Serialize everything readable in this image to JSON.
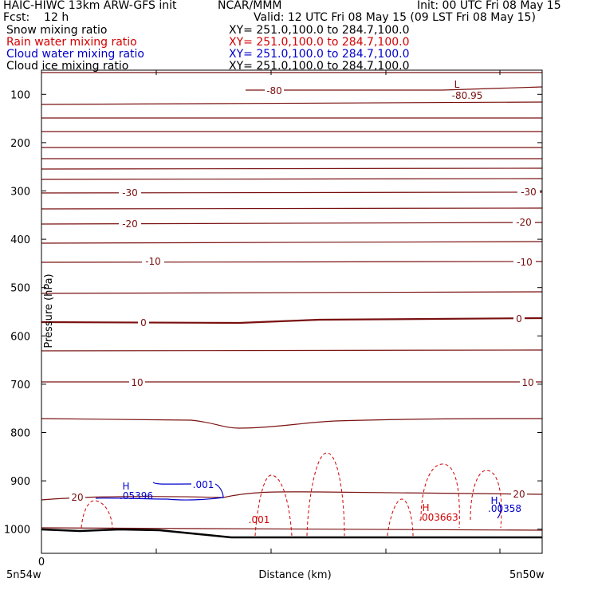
{
  "header": {
    "model": "HAIC-HIWC 13km ARW-GFS init",
    "org": "NCAR/MMM",
    "init": "Init: 00 UTC Fri 08 May 15",
    "fcst": "Fcst:    12 h",
    "valid": "Valid: 12 UTC Fri 08 May 15 (09 LST Fri 08 May 15)",
    "fields": [
      {
        "name": "Snow mixing ratio",
        "xy": "XY= 251.0,100.0 to 284.7,100.0",
        "color": "#000000"
      },
      {
        "name": "Rain water mixing ratio",
        "xy": "XY= 251.0,100.0 to 284.7,100.0",
        "color": "#d40000"
      },
      {
        "name": "Cloud water mixing ratio",
        "xy": "XY= 251.0,100.0 to 284.7,100.0",
        "color": "#0000cc"
      },
      {
        "name": "Cloud ice mixing ratio",
        "xy": "XY= 251.0,100.0 to 284.7,100.0",
        "color": "#000000"
      }
    ]
  },
  "chart_data": {
    "type": "cross-section contour",
    "xlabel": "Distance (km)",
    "ylabel": "Pressure (hPa)",
    "x_start_tick": "0",
    "x_left_label": "5n54w",
    "x_right_label": "5n50w",
    "yticks": [
      100,
      200,
      300,
      400,
      500,
      600,
      700,
      800,
      900,
      1000
    ],
    "ylim": [
      1050,
      50
    ],
    "temperature_contour_labels": [
      "-80",
      "-30",
      "-30",
      "-20",
      "-20",
      "-10",
      "-10",
      "0",
      "0",
      "10",
      "10",
      "20",
      "20"
    ],
    "extremum_labels": [
      {
        "symbol": "L",
        "value": "-80.95",
        "color": "#7a1010"
      },
      {
        "symbol": "H",
        "value": ".05396",
        "color": "#0000cc"
      },
      {
        "symbol": "H",
        "value": ".003663",
        "color": "#d40000"
      },
      {
        "symbol": "H",
        "value": ".00358",
        "color": "#0000cc"
      }
    ],
    "mixing_ratio_contour_labels": [
      {
        "value": ".001",
        "color": "#0000cc"
      },
      {
        "value": ".001",
        "color": "#d40000"
      }
    ],
    "colors": {
      "temperature": "#7a1010",
      "rain": "#d40000",
      "cloud_water": "#0000cc",
      "terrain": "#000000"
    }
  }
}
